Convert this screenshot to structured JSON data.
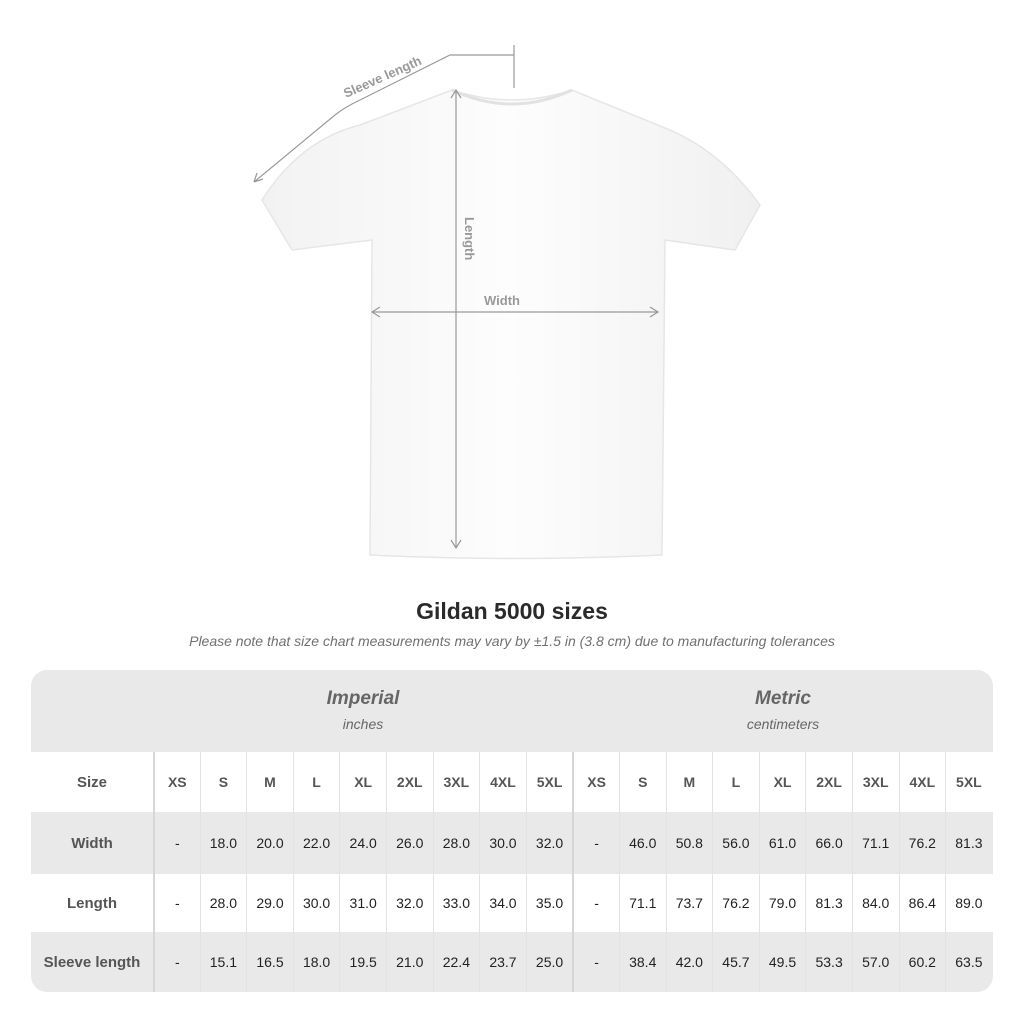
{
  "diagram": {
    "sleeve_label": "Sleeve length",
    "length_label": "Length",
    "width_label": "Width"
  },
  "title": "Gildan 5000 sizes",
  "note": "Please note that size chart measurements may vary by ±1.5 in (3.8 cm) due to manufacturing tolerances",
  "imperial": {
    "heading": "Imperial",
    "unit": "inches"
  },
  "metric": {
    "heading": "Metric",
    "unit": "centimeters"
  },
  "size_label": "Size",
  "sizes": [
    "XS",
    "S",
    "M",
    "L",
    "XL",
    "2XL",
    "3XL",
    "4XL",
    "5XL"
  ],
  "rows": [
    {
      "label": "Width",
      "imperial": [
        "-",
        "18.0",
        "20.0",
        "22.0",
        "24.0",
        "26.0",
        "28.0",
        "30.0",
        "32.0"
      ],
      "metric": [
        "-",
        "46.0",
        "50.8",
        "56.0",
        "61.0",
        "66.0",
        "71.1",
        "76.2",
        "81.3"
      ]
    },
    {
      "label": "Length",
      "imperial": [
        "-",
        "28.0",
        "29.0",
        "30.0",
        "31.0",
        "32.0",
        "33.0",
        "34.0",
        "35.0"
      ],
      "metric": [
        "-",
        "71.1",
        "73.7",
        "76.2",
        "79.0",
        "81.3",
        "84.0",
        "86.4",
        "89.0"
      ]
    },
    {
      "label": "Sleeve length",
      "imperial": [
        "-",
        "15.1",
        "16.5",
        "18.0",
        "19.5",
        "21.0",
        "22.4",
        "23.7",
        "25.0"
      ],
      "metric": [
        "-",
        "38.4",
        "42.0",
        "45.7",
        "49.5",
        "53.3",
        "57.0",
        "60.2",
        "63.5"
      ]
    }
  ]
}
